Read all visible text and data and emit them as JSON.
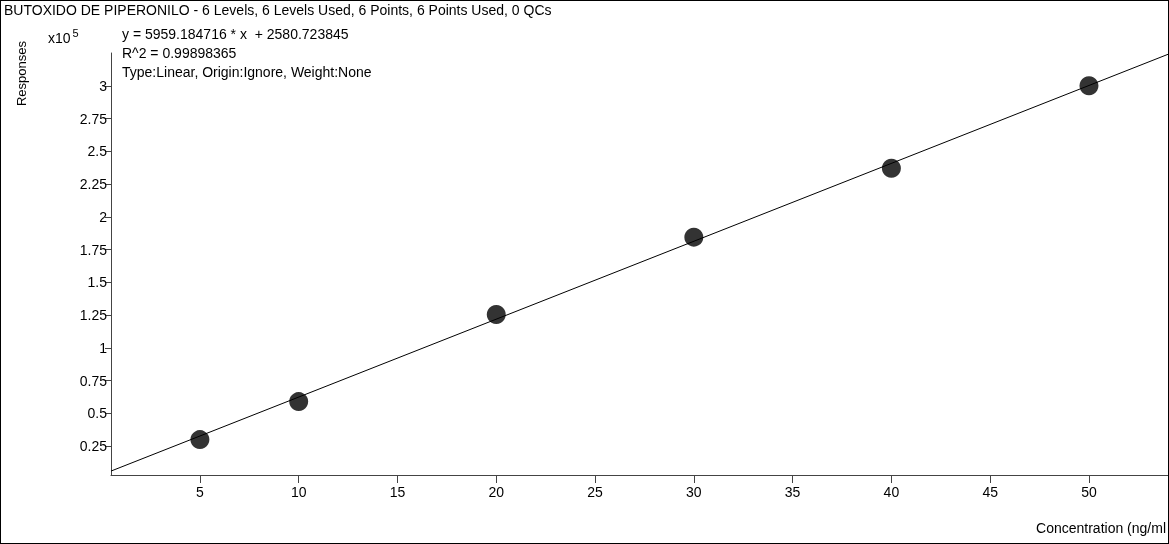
{
  "chart_data": {
    "type": "scatter",
    "title": "BUTOXIDO DE PIPERONILO - 6 Levels, 6 Levels Used, 6 Points, 6 Points Used, 0 QCs",
    "xlabel": "Concentration (ng/ml",
    "ylabel": "Responses",
    "annotations": [
      "x10$^{5}$",
      "y = 5959.184716 * x  + 2580.723845",
      "R^2 = 0.99898365",
      "Type:Linear, Origin:Ignore, Weight:None"
    ],
    "series": [
      {
        "type": "scatter",
        "color": "#000000",
        "marker": "circle",
        "x": [
          5,
          10,
          20,
          30,
          40,
          50
        ],
        "values": [
          0.3,
          0.59,
          1.255,
          1.845,
          2.37,
          3.0
        ]
      },
      {
        "type": "line",
        "color": "#000000",
        "marker": "none",
        "line_style": "solid",
        "x": [
          0.5,
          54
        ],
        "values": [
          0.06,
          3.24
        ]
      }
    ],
    "xlim": [
      0.5,
      54
    ],
    "xticks": [
      5,
      10,
      15,
      20,
      25,
      30,
      35,
      40,
      45,
      50
    ],
    "ylim": [
      0.03,
      3.25
    ],
    "yticks": [
      0.25,
      0.5,
      0.75,
      1,
      1.25,
      1.5,
      1.75,
      2,
      2.25,
      2.5,
      2.75,
      3
    ],
    "grid": false
  }
}
